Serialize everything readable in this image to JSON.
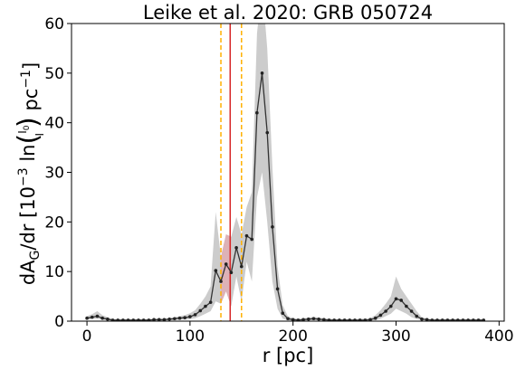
{
  "chart_data": {
    "type": "line",
    "title": "Leike et al. 2020: GRB 050724",
    "xlabel": "r [pc]",
    "ylabel": "dA_G/dr [10^-3 ln(I0/I) pc^-1]",
    "xlim": [
      -15,
      405
    ],
    "ylim": [
      0,
      60
    ],
    "xticks": [
      0,
      100,
      200,
      300,
      400
    ],
    "yticks": [
      0,
      10,
      20,
      30,
      40,
      50,
      60
    ],
    "grid": false,
    "series": [
      {
        "x": [
          0,
          5,
          10,
          15,
          20,
          25,
          30,
          35,
          40,
          45,
          50,
          55,
          60,
          65,
          70,
          75,
          80,
          85,
          90,
          95,
          100,
          105,
          110,
          115,
          120,
          125,
          130,
          135,
          140,
          145,
          150,
          155,
          160,
          165,
          170,
          175,
          180,
          185,
          190,
          195,
          200,
          205,
          210,
          215,
          220,
          225,
          230,
          235,
          240,
          245,
          250,
          255,
          260,
          265,
          270,
          275,
          280,
          285,
          290,
          295,
          300,
          305,
          310,
          315,
          320,
          325,
          330,
          335,
          340,
          345,
          350,
          355,
          360,
          365,
          370,
          375,
          380,
          385
        ],
        "values": [
          0.6,
          0.8,
          1.0,
          0.6,
          0.4,
          0.2,
          0.2,
          0.2,
          0.2,
          0.2,
          0.2,
          0.2,
          0.2,
          0.3,
          0.3,
          0.3,
          0.4,
          0.5,
          0.6,
          0.7,
          0.9,
          1.3,
          2.1,
          3.0,
          3.8,
          10.2,
          8.0,
          11.5,
          9.8,
          14.8,
          11.0,
          17.2,
          16.5,
          42.0,
          50.0,
          38.0,
          19.0,
          6.5,
          1.6,
          0.5,
          0.3,
          0.2,
          0.3,
          0.4,
          0.5,
          0.4,
          0.3,
          0.2,
          0.2,
          0.2,
          0.2,
          0.2,
          0.2,
          0.2,
          0.2,
          0.3,
          0.6,
          1.2,
          2.0,
          3.0,
          4.5,
          4.2,
          3.0,
          2.0,
          1.0,
          0.4,
          0.3,
          0.2,
          0.2,
          0.2,
          0.2,
          0.2,
          0.2,
          0.2,
          0.2,
          0.2,
          0.2,
          0.2
        ],
        "lower": [
          0.3,
          0.4,
          0.5,
          0.3,
          0.2,
          0.1,
          0.1,
          0.1,
          0.1,
          0.1,
          0.1,
          0.1,
          0.1,
          0.1,
          0.1,
          0.1,
          0.2,
          0.2,
          0.3,
          0.3,
          0.4,
          0.6,
          1.0,
          1.5,
          2.0,
          4.0,
          3.5,
          6.0,
          3.0,
          9.0,
          4.0,
          12.0,
          8.0,
          25.0,
          30.0,
          20.0,
          8.0,
          2.5,
          0.5,
          0.2,
          0.1,
          0.1,
          0.1,
          0.2,
          0.2,
          0.2,
          0.1,
          0.1,
          0.1,
          0.1,
          0.1,
          0.1,
          0.1,
          0.1,
          0.1,
          0.1,
          0.2,
          0.5,
          1.0,
          1.5,
          2.5,
          2.0,
          1.5,
          0.8,
          0.4,
          0.2,
          0.1,
          0.1,
          0.1,
          0.1,
          0.1,
          0.1,
          0.1,
          0.1,
          0.1,
          0.1,
          0.1,
          0.1
        ],
        "upper": [
          1.0,
          1.4,
          2.0,
          1.2,
          0.8,
          0.4,
          0.4,
          0.4,
          0.4,
          0.4,
          0.4,
          0.4,
          0.4,
          0.5,
          0.5,
          0.5,
          0.6,
          0.8,
          1.0,
          1.2,
          1.6,
          2.2,
          3.5,
          5.0,
          7.0,
          22.0,
          13.0,
          17.5,
          17.0,
          21.0,
          17.5,
          23.0,
          26.0,
          58.0,
          68.0,
          55.0,
          31.0,
          11.0,
          3.2,
          1.0,
          0.6,
          0.5,
          0.6,
          0.7,
          0.9,
          0.7,
          0.6,
          0.5,
          0.4,
          0.4,
          0.4,
          0.4,
          0.4,
          0.5,
          0.5,
          0.6,
          1.2,
          2.2,
          3.5,
          5.0,
          9.0,
          6.5,
          5.0,
          3.5,
          2.0,
          0.8,
          0.5,
          0.4,
          0.4,
          0.4,
          0.4,
          0.4,
          0.4,
          0.4,
          0.4,
          0.4,
          0.4,
          0.4
        ]
      }
    ],
    "vlines": [
      {
        "x": 139,
        "color": "#d62728",
        "style": "solid"
      },
      {
        "x": 130,
        "color": "#ffb000",
        "style": "dashed"
      },
      {
        "x": 150,
        "color": "#ffb000",
        "style": "dashed"
      }
    ],
    "colors": {
      "line": "#333333",
      "band": "#cccccc",
      "red_band": "#e8a0a8"
    }
  }
}
